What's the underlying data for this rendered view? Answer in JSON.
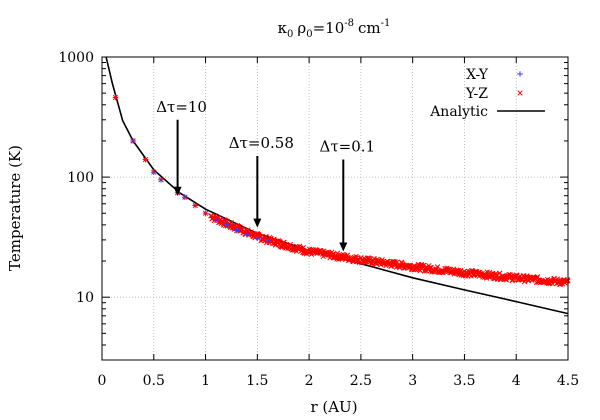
{
  "chart_data": {
    "type": "scatter",
    "title_parts": {
      "kappa": "κ",
      "kappa_sub": "0",
      "rho": "ρ",
      "rho_sub": "0",
      "eq": "=10",
      "exp": "-8",
      "unit": "cm",
      "unit_exp": "-1"
    },
    "xlabel": "r (AU)",
    "ylabel": "Temperature (K)",
    "xlim": [
      0,
      4.5
    ],
    "ylim": [
      3,
      1000
    ],
    "yscale": "log",
    "grid": true,
    "legend_position": "top-right",
    "x_ticks": [
      0,
      0.5,
      1,
      1.5,
      2,
      2.5,
      3,
      3.5,
      4,
      4.5
    ],
    "x_tick_labels": [
      "0",
      "0.5",
      "1",
      "1.5",
      "2",
      "2.5",
      "3",
      "3.5",
      "4",
      "4.5"
    ],
    "y_ticks": [
      10,
      100,
      1000
    ],
    "y_tick_labels": [
      "10",
      "100",
      "1000"
    ],
    "series": [
      {
        "name": "X-Y",
        "marker": "+",
        "color": "#3a3aff",
        "points": [
          [
            0.13,
            460
          ],
          [
            0.3,
            200
          ],
          [
            0.42,
            140
          ],
          [
            0.5,
            110
          ],
          [
            0.57,
            95
          ],
          [
            0.73,
            74
          ],
          [
            0.8,
            68
          ],
          [
            0.9,
            58
          ],
          [
            1.0,
            50
          ],
          [
            1.1,
            44
          ],
          [
            1.2,
            40
          ],
          [
            1.3,
            36
          ],
          [
            1.4,
            33
          ],
          [
            1.5,
            31
          ],
          [
            1.6,
            29.5
          ]
        ]
      },
      {
        "name": "Y-Z",
        "marker": "x",
        "color": "#ff0000",
        "points_summary": [
          [
            0.13,
            460
          ],
          [
            0.3,
            200
          ],
          [
            0.42,
            140
          ],
          [
            0.5,
            110
          ],
          [
            0.57,
            95
          ],
          [
            0.73,
            74
          ],
          [
            0.8,
            68
          ],
          [
            0.9,
            58
          ],
          [
            1.0,
            50
          ],
          [
            1.2,
            41
          ],
          [
            1.5,
            32
          ],
          [
            1.75,
            27.5
          ],
          [
            2.0,
            24
          ],
          [
            2.5,
            20.5
          ],
          [
            3.0,
            18
          ],
          [
            3.5,
            16
          ],
          [
            4.0,
            14.5
          ],
          [
            4.5,
            13.3
          ]
        ]
      },
      {
        "name": "Analytic",
        "style": "line",
        "color": "#000000",
        "points": [
          [
            0.04,
            1000
          ],
          [
            0.1,
            600
          ],
          [
            0.2,
            295
          ],
          [
            0.3,
            200
          ],
          [
            0.5,
            115
          ],
          [
            0.75,
            74
          ],
          [
            1.0,
            54
          ],
          [
            1.5,
            34
          ],
          [
            2.0,
            24.5
          ],
          [
            2.5,
            19
          ],
          [
            3.0,
            14.5
          ],
          [
            3.5,
            11.5
          ],
          [
            4.0,
            9.2
          ],
          [
            4.5,
            7.3
          ]
        ]
      }
    ],
    "annotations": [
      {
        "text": "Δτ=10",
        "x": 0.73,
        "y_from": 300,
        "y_to": 70
      },
      {
        "text": "Δτ=0.58",
        "x": 1.5,
        "y_from": 150,
        "y_to": 38
      },
      {
        "text": "Δτ=0.1",
        "x": 2.33,
        "y_from": 140,
        "y_to": 24
      }
    ]
  }
}
